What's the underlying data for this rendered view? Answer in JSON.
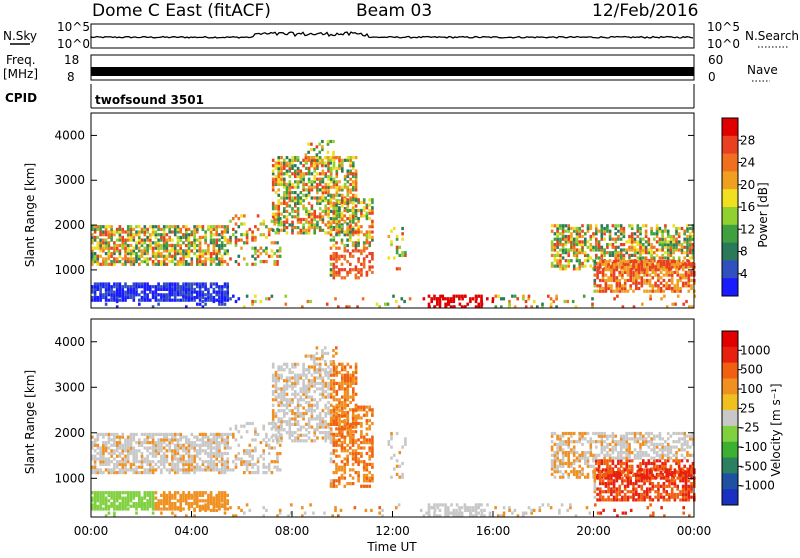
{
  "header": {
    "station": "Dome C East (fitACF)",
    "beam": "Beam 03",
    "date": "12/Feb/2016"
  },
  "top_panels": {
    "nsky_label": "N.Sky",
    "nsky_ticks": [
      "10^5",
      "10^0"
    ],
    "nsearch_label": "N.Search",
    "nsearch_ticks": [
      "10^5",
      "10^0"
    ],
    "freq_label": "Freq.",
    "freq_unit": "[MHz]",
    "freq_ticks": [
      "18",
      "8"
    ],
    "nave_label": "Nave",
    "nave_ticks": [
      "60",
      "0"
    ],
    "cpid_label": "CPID",
    "cpid_value": "twofsound 3501"
  },
  "chart_data": [
    {
      "type": "heatmap",
      "name": "Power",
      "ylabel": "Slant Range [km]",
      "yticks": [
        "1000",
        "2000",
        "3000",
        "4000"
      ],
      "ylim": [
        150,
        4500
      ],
      "xticks": [
        "00:00",
        "04:00",
        "08:00",
        "12:00",
        "16:00",
        "20:00",
        "00:00"
      ],
      "colorbar": {
        "label": "Power [dB]",
        "ticks": [
          "4",
          "8",
          "12",
          "16",
          "20",
          "24",
          "28"
        ],
        "colors": [
          "#1a1aff",
          "#3050c0",
          "#2a7a5a",
          "#40a040",
          "#90d030",
          "#f0e020",
          "#f0a020",
          "#f07020",
          "#e84020",
          "#e00000"
        ]
      }
    },
    {
      "type": "heatmap",
      "name": "Velocity",
      "ylabel": "Slant Range [km]",
      "yticks": [
        "1000",
        "2000",
        "3000",
        "4000"
      ],
      "ylim": [
        150,
        4500
      ],
      "xticks": [
        "00:00",
        "04:00",
        "08:00",
        "12:00",
        "16:00",
        "20:00",
        "00:00"
      ],
      "xlabel": "Time UT",
      "colorbar": {
        "label": "Velocity [m s⁻¹]",
        "ticks": [
          "1000",
          "500",
          "100",
          "25",
          "-25",
          "-100",
          "-500",
          "-1000"
        ],
        "colors": [
          "#1a30c0",
          "#2050a0",
          "#2a8060",
          "#3cb030",
          "#80d040",
          "#c8c8c8",
          "#f0c020",
          "#f09020",
          "#f06010",
          "#e82010",
          "#e00000"
        ]
      }
    }
  ]
}
